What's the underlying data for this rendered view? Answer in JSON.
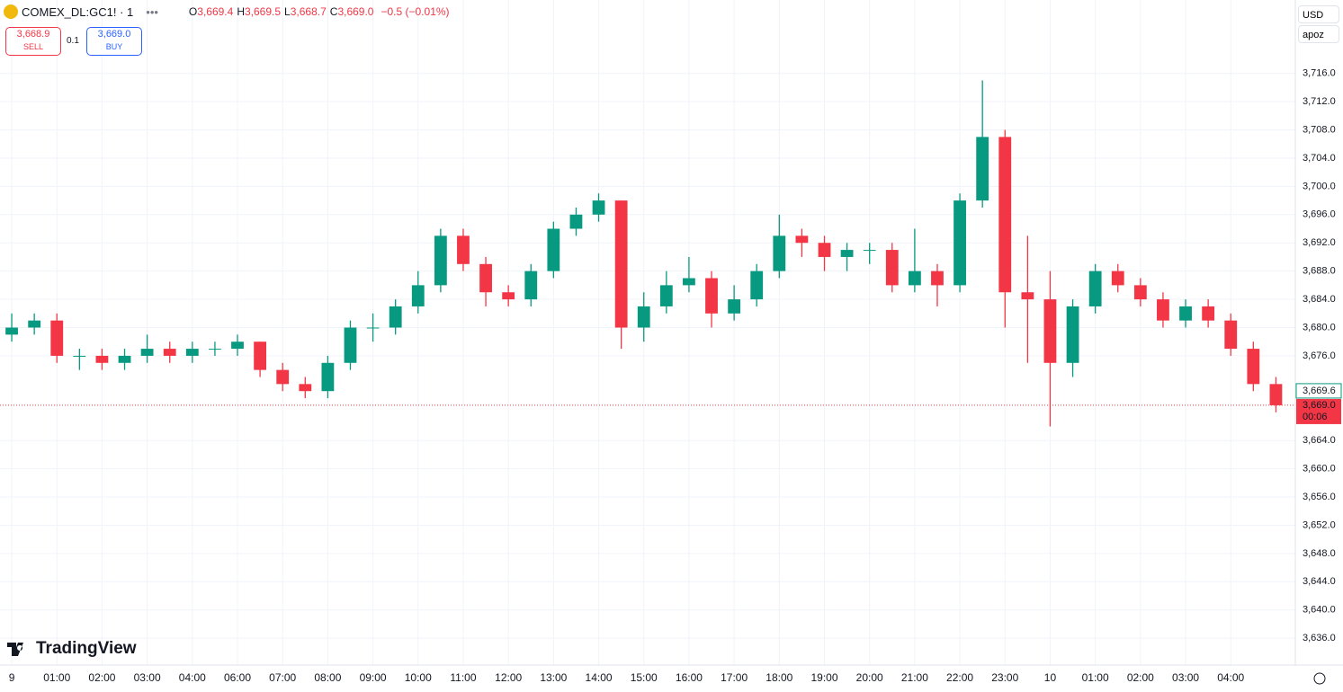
{
  "chart_data": {
    "type": "candlestick",
    "symbol": "COMEX_DL:GC1! · 1",
    "ohlc_legend": [
      {
        "key": "O",
        "text": "3,669.4"
      },
      {
        "key": "H",
        "text": "3,669.5"
      },
      {
        "key": "L",
        "text": "3,668.7"
      },
      {
        "key": "C",
        "text": "3,669.0"
      }
    ],
    "change": "−0.5 (−0.01%)",
    "sell": {
      "price": "3,668.9",
      "label": "SELL"
    },
    "buy": {
      "price": "3,669.0",
      "label": "BUY"
    },
    "quantity": "0.1",
    "currency": "USD",
    "scale_mode": "apoz",
    "brand": "TradingView",
    "up_color": "#089981",
    "down_color": "#f23645",
    "grid": true,
    "x": [
      0,
      0.5,
      1,
      1.5,
      2,
      2.5,
      3,
      3.5,
      4,
      4.5,
      5,
      5.5,
      6,
      6.5,
      7,
      7.5,
      8,
      8.5,
      9,
      9.5,
      10,
      10.5,
      11,
      11.5,
      12,
      12.5,
      13,
      13.5,
      14,
      14.5,
      15,
      15.5,
      16,
      16.5,
      17,
      17.5,
      18,
      18.5,
      19,
      19.5,
      20,
      20.5,
      21,
      21.5,
      22,
      22.5,
      23,
      23.5,
      24,
      24.5,
      25,
      25.5,
      26,
      26.5,
      27,
      27.5,
      28
    ],
    "open": [
      3679,
      3680,
      3681,
      3676,
      3676,
      3675,
      3676,
      3677,
      3676,
      3677,
      3677,
      3678,
      3674,
      3672,
      3671,
      3675,
      3680,
      3680,
      3683,
      3686,
      3693,
      3689,
      3685,
      3684,
      3688,
      3694,
      3696,
      3698,
      3680,
      3683,
      3686,
      3687,
      3682,
      3684,
      3688,
      3693,
      3692,
      3690,
      3691,
      3691,
      3686,
      3688,
      3686,
      3698,
      3707,
      3685,
      3684,
      3675,
      3683,
      3688,
      3686,
      3684,
      3681,
      3683,
      3681,
      3677,
      3672
    ],
    "high": [
      3682,
      3682,
      3682,
      3677,
      3677,
      3677,
      3679,
      3678,
      3678,
      3678,
      3679,
      3678,
      3675,
      3673,
      3676,
      3681,
      3682,
      3684,
      3688,
      3694,
      3694,
      3690,
      3686,
      3689,
      3695,
      3697,
      3699,
      3698,
      3685,
      3688,
      3690,
      3688,
      3686,
      3689,
      3696,
      3694,
      3693,
      3692,
      3692,
      3692,
      3694,
      3689,
      3699,
      3715,
      3708,
      3693,
      3688,
      3684,
      3689,
      3689,
      3687,
      3685,
      3684,
      3684,
      3682,
      3678,
      3673
    ],
    "low": [
      3678,
      3679,
      3675,
      3674,
      3674,
      3674,
      3675,
      3675,
      3675,
      3676,
      3676,
      3673,
      3671,
      3670,
      3670,
      3674,
      3678,
      3679,
      3682,
      3685,
      3688,
      3683,
      3683,
      3683,
      3687,
      3693,
      3695,
      3677,
      3678,
      3682,
      3685,
      3680,
      3681,
      3683,
      3687,
      3690,
      3688,
      3688,
      3689,
      3685,
      3685,
      3683,
      3685,
      3697,
      3680,
      3675,
      3666,
      3673,
      3682,
      3685,
      3683,
      3680,
      3680,
      3680,
      3676,
      3671,
      3668
    ],
    "close": [
      3680,
      3681,
      3676,
      3676,
      3675,
      3676,
      3677,
      3676,
      3677,
      3677,
      3678,
      3674,
      3672,
      3671,
      3675,
      3680,
      3680,
      3683,
      3686,
      3693,
      3689,
      3685,
      3684,
      3688,
      3694,
      3696,
      3698,
      3680,
      3683,
      3686,
      3687,
      3682,
      3684,
      3688,
      3693,
      3692,
      3690,
      3691,
      3691,
      3686,
      3688,
      3686,
      3698,
      3707,
      3685,
      3684,
      3675,
      3683,
      3688,
      3686,
      3684,
      3681,
      3683,
      3681,
      3677,
      3672,
      3669
    ],
    "xlim": [
      -0.26,
      28.43
    ],
    "xticks": [
      {
        "value": 0,
        "label": "9"
      },
      {
        "value": 1,
        "label": "01:00"
      },
      {
        "value": 2,
        "label": "02:00"
      },
      {
        "value": 3,
        "label": "03:00"
      },
      {
        "value": 4,
        "label": "04:00"
      },
      {
        "value": 5,
        "label": "06:00"
      },
      {
        "value": 6,
        "label": "07:00"
      },
      {
        "value": 7,
        "label": "08:00"
      },
      {
        "value": 8,
        "label": "09:00"
      },
      {
        "value": 9,
        "label": "10:00"
      },
      {
        "value": 10,
        "label": "11:00"
      },
      {
        "value": 11,
        "label": "12:00"
      },
      {
        "value": 12,
        "label": "13:00"
      },
      {
        "value": 13,
        "label": "14:00"
      },
      {
        "value": 14,
        "label": "15:00"
      },
      {
        "value": 15,
        "label": "16:00"
      },
      {
        "value": 16,
        "label": "17:00"
      },
      {
        "value": 17,
        "label": "18:00"
      },
      {
        "value": 18,
        "label": "19:00"
      },
      {
        "value": 19,
        "label": "20:00"
      },
      {
        "value": 20,
        "label": "21:00"
      },
      {
        "value": 21,
        "label": "22:00"
      },
      {
        "value": 22,
        "label": "23:00"
      },
      {
        "value": 23,
        "label": "10"
      },
      {
        "value": 24,
        "label": "01:00"
      },
      {
        "value": 25,
        "label": "02:00"
      },
      {
        "value": 26,
        "label": "03:00"
      },
      {
        "value": 27,
        "label": "04:00"
      }
    ],
    "ylim": [
      3632.2,
      3726.4
    ],
    "yticks": [
      {
        "value": 3636,
        "label": "3,636.0"
      },
      {
        "value": 3640,
        "label": "3,640.0"
      },
      {
        "value": 3644,
        "label": "3,644.0"
      },
      {
        "value": 3648,
        "label": "3,648.0"
      },
      {
        "value": 3652,
        "label": "3,652.0"
      },
      {
        "value": 3656,
        "label": "3,656.0"
      },
      {
        "value": 3660,
        "label": "3,660.0"
      },
      {
        "value": 3664,
        "label": "3,664.0"
      },
      {
        "value": 3676,
        "label": "3,676.0"
      },
      {
        "value": 3680,
        "label": "3,680.0"
      },
      {
        "value": 3684,
        "label": "3,684.0"
      },
      {
        "value": 3688,
        "label": "3,688.0"
      },
      {
        "value": 3692,
        "label": "3,692.0"
      },
      {
        "value": 3696,
        "label": "3,696.0"
      },
      {
        "value": 3700,
        "label": "3,700.0"
      },
      {
        "value": 3704,
        "label": "3,704.0"
      },
      {
        "value": 3708,
        "label": "3,708.0"
      },
      {
        "value": 3712,
        "label": "3,712.0"
      },
      {
        "value": 3716,
        "label": "3,716.0"
      }
    ],
    "last_price": {
      "value": 3669.0,
      "label": "3,669.0"
    },
    "bid_label": "3,669.6",
    "countdown": "00:06"
  }
}
